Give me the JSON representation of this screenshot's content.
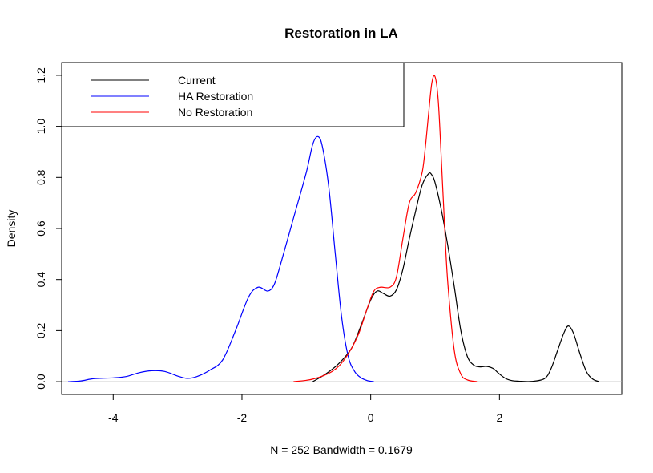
{
  "chart_data": {
    "type": "line",
    "title": "Restoration in LA",
    "xlabel": "N = 252   Bandwidth = 0.1679",
    "ylabel": "Density",
    "xlim": [
      -4.8,
      3.9
    ],
    "ylim": [
      -0.05,
      1.25
    ],
    "x_ticks": [
      -4,
      -2,
      0,
      2
    ],
    "x_tick_labels": [
      "-4",
      "-2",
      "0",
      "2"
    ],
    "y_ticks": [
      0.0,
      0.2,
      0.4,
      0.6,
      0.8,
      1.0,
      1.2
    ],
    "y_tick_labels": [
      "0.0",
      "0.2",
      "0.4",
      "0.6",
      "0.8",
      "1.0",
      "1.2"
    ],
    "baseline": 0,
    "legend_position": "top-left",
    "series": [
      {
        "name": "Current",
        "color": "#000000",
        "points": [
          [
            -0.9,
            0.0
          ],
          [
            -0.7,
            0.03
          ],
          [
            -0.5,
            0.07
          ],
          [
            -0.3,
            0.13
          ],
          [
            -0.15,
            0.22
          ],
          [
            0.0,
            0.32
          ],
          [
            0.1,
            0.355
          ],
          [
            0.2,
            0.345
          ],
          [
            0.3,
            0.335
          ],
          [
            0.4,
            0.36
          ],
          [
            0.5,
            0.44
          ],
          [
            0.6,
            0.56
          ],
          [
            0.7,
            0.67
          ],
          [
            0.8,
            0.77
          ],
          [
            0.9,
            0.815
          ],
          [
            0.95,
            0.81
          ],
          [
            1.0,
            0.78
          ],
          [
            1.1,
            0.67
          ],
          [
            1.2,
            0.53
          ],
          [
            1.3,
            0.37
          ],
          [
            1.4,
            0.2
          ],
          [
            1.5,
            0.1
          ],
          [
            1.6,
            0.065
          ],
          [
            1.7,
            0.058
          ],
          [
            1.8,
            0.06
          ],
          [
            1.9,
            0.052
          ],
          [
            2.0,
            0.03
          ],
          [
            2.1,
            0.012
          ],
          [
            2.2,
            0.004
          ],
          [
            2.3,
            0.002
          ],
          [
            2.5,
            0.001
          ],
          [
            2.7,
            0.012
          ],
          [
            2.8,
            0.05
          ],
          [
            2.9,
            0.12
          ],
          [
            3.0,
            0.19
          ],
          [
            3.07,
            0.218
          ],
          [
            3.15,
            0.19
          ],
          [
            3.25,
            0.11
          ],
          [
            3.35,
            0.04
          ],
          [
            3.45,
            0.01
          ],
          [
            3.55,
            0.0
          ]
        ]
      },
      {
        "name": "HA Restoration",
        "color": "#0000ff",
        "points": [
          [
            -4.7,
            0.0
          ],
          [
            -4.5,
            0.003
          ],
          [
            -4.3,
            0.012
          ],
          [
            -4.0,
            0.015
          ],
          [
            -3.8,
            0.02
          ],
          [
            -3.6,
            0.035
          ],
          [
            -3.4,
            0.043
          ],
          [
            -3.2,
            0.04
          ],
          [
            -3.0,
            0.022
          ],
          [
            -2.85,
            0.013
          ],
          [
            -2.7,
            0.02
          ],
          [
            -2.5,
            0.045
          ],
          [
            -2.3,
            0.085
          ],
          [
            -2.1,
            0.2
          ],
          [
            -1.9,
            0.33
          ],
          [
            -1.75,
            0.37
          ],
          [
            -1.6,
            0.355
          ],
          [
            -1.5,
            0.38
          ],
          [
            -1.4,
            0.46
          ],
          [
            -1.2,
            0.64
          ],
          [
            -1.0,
            0.82
          ],
          [
            -0.9,
            0.93
          ],
          [
            -0.82,
            0.96
          ],
          [
            -0.75,
            0.92
          ],
          [
            -0.65,
            0.76
          ],
          [
            -0.55,
            0.5
          ],
          [
            -0.45,
            0.25
          ],
          [
            -0.35,
            0.1
          ],
          [
            -0.25,
            0.04
          ],
          [
            -0.15,
            0.015
          ],
          [
            -0.05,
            0.004
          ],
          [
            0.05,
            0.0
          ]
        ]
      },
      {
        "name": "No Restoration",
        "color": "#ff0000",
        "points": [
          [
            -1.2,
            0.0
          ],
          [
            -0.9,
            0.01
          ],
          [
            -0.6,
            0.04
          ],
          [
            -0.4,
            0.09
          ],
          [
            -0.2,
            0.18
          ],
          [
            -0.05,
            0.29
          ],
          [
            0.05,
            0.355
          ],
          [
            0.15,
            0.37
          ],
          [
            0.3,
            0.37
          ],
          [
            0.4,
            0.41
          ],
          [
            0.5,
            0.56
          ],
          [
            0.6,
            0.7
          ],
          [
            0.7,
            0.74
          ],
          [
            0.8,
            0.82
          ],
          [
            0.85,
            0.92
          ],
          [
            0.9,
            1.05
          ],
          [
            0.95,
            1.17
          ],
          [
            1.0,
            1.195
          ],
          [
            1.05,
            1.1
          ],
          [
            1.1,
            0.86
          ],
          [
            1.15,
            0.6
          ],
          [
            1.2,
            0.38
          ],
          [
            1.3,
            0.12
          ],
          [
            1.4,
            0.03
          ],
          [
            1.5,
            0.007
          ],
          [
            1.65,
            0.0
          ]
        ]
      }
    ]
  }
}
